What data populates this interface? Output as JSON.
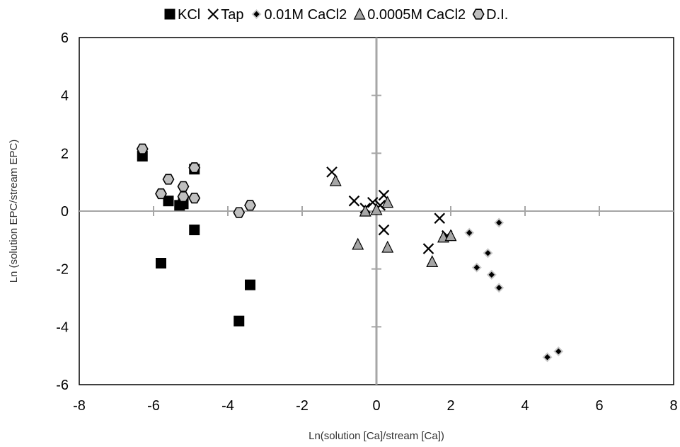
{
  "chart_data": {
    "type": "scatter",
    "xlabel": "Ln(solution [Ca]/stream [Ca])",
    "ylabel": "Ln (solution EPC/stream EPC)",
    "xlim": [
      -8,
      8
    ],
    "ylim": [
      -6,
      6
    ],
    "xticks": [
      -8,
      -6,
      -4,
      -2,
      0,
      2,
      4,
      6,
      8
    ],
    "yticks": [
      -6,
      -4,
      -2,
      0,
      2,
      4,
      6
    ],
    "grid": false,
    "legend_position": "top",
    "series": [
      {
        "name": "KCl",
        "marker": "square",
        "color": "#000000",
        "points": [
          [
            -6.3,
            1.9
          ],
          [
            -5.6,
            0.35
          ],
          [
            -5.3,
            0.2
          ],
          [
            -5.2,
            0.25
          ],
          [
            -4.9,
            1.45
          ],
          [
            -4.9,
            -0.65
          ],
          [
            -5.8,
            -1.8
          ],
          [
            -3.7,
            -3.8
          ],
          [
            -3.4,
            -2.55
          ]
        ]
      },
      {
        "name": "Tap",
        "marker": "x",
        "color": "#000000",
        "points": [
          [
            -1.2,
            1.35
          ],
          [
            -0.6,
            0.35
          ],
          [
            -0.3,
            0.1
          ],
          [
            -0.1,
            0.3
          ],
          [
            0.1,
            0.2
          ],
          [
            0.2,
            0.55
          ],
          [
            0.2,
            -0.65
          ],
          [
            1.4,
            -1.3
          ],
          [
            1.7,
            -0.25
          ],
          [
            1.9,
            -0.85
          ]
        ]
      },
      {
        "name": "0.01M CaCl2",
        "marker": "diamond",
        "color": "#000000",
        "points": [
          [
            2.5,
            -0.75
          ],
          [
            2.7,
            -1.95
          ],
          [
            3.0,
            -1.45
          ],
          [
            3.1,
            -2.2
          ],
          [
            3.3,
            -2.65
          ],
          [
            3.3,
            -0.4
          ],
          [
            4.6,
            -5.05
          ],
          [
            4.9,
            -4.85
          ]
        ]
      },
      {
        "name": "0.0005M CaCl2",
        "marker": "triangle",
        "color": "#a6a6a6",
        "points": [
          [
            -1.1,
            1.05
          ],
          [
            -0.5,
            -1.15
          ],
          [
            -0.3,
            0.0
          ],
          [
            0.0,
            0.05
          ],
          [
            0.3,
            0.3
          ],
          [
            0.3,
            -1.25
          ],
          [
            1.5,
            -1.75
          ],
          [
            1.8,
            -0.9
          ],
          [
            2.0,
            -0.85
          ]
        ]
      },
      {
        "name": "D.I.",
        "marker": "hexagon",
        "color": "#bfbfbf",
        "points": [
          [
            -6.3,
            2.15
          ],
          [
            -5.6,
            1.1
          ],
          [
            -5.8,
            0.6
          ],
          [
            -5.2,
            0.85
          ],
          [
            -5.2,
            0.5
          ],
          [
            -4.9,
            0.45
          ],
          [
            -4.9,
            1.5
          ],
          [
            -3.7,
            -0.05
          ],
          [
            -3.4,
            0.2
          ]
        ]
      }
    ]
  }
}
